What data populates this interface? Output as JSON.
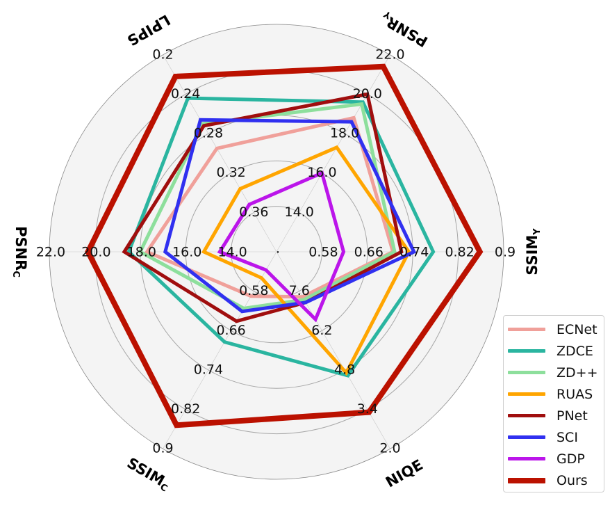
{
  "chart_data": {
    "type": "radar",
    "center_label": ".",
    "axes": [
      {
        "key": "psnry",
        "main": "PSNR",
        "sub": "Y",
        "ticks": [
          "14.0",
          "16.0",
          "18.0",
          "20.0",
          "22.0"
        ],
        "min": 12.0,
        "max": 22.0,
        "invert": false
      },
      {
        "key": "ssimy",
        "main": "SSIM",
        "sub": "Y",
        "ticks": [
          "0.58",
          "0.66",
          "0.74",
          "0.82",
          "0.9"
        ],
        "min": 0.5,
        "max": 0.9,
        "invert": false
      },
      {
        "key": "niqe",
        "main": "NIQE",
        "sub": "",
        "ticks": [
          "7.6",
          "6.2",
          "4.8",
          "3.4",
          "2.0"
        ],
        "min": 9.0,
        "max": 2.0,
        "invert": true
      },
      {
        "key": "ssimc",
        "main": "SSIM",
        "sub": "C",
        "ticks": [
          "0.58",
          "0.66",
          "0.74",
          "0.82",
          "0.9"
        ],
        "min": 0.5,
        "max": 0.9,
        "invert": false
      },
      {
        "key": "psnrc",
        "main": "PSNR",
        "sub": "C",
        "ticks": [
          "14.0",
          "16.0",
          "18.0",
          "20.0",
          "22.0"
        ],
        "min": 12.0,
        "max": 22.0,
        "invert": false
      },
      {
        "key": "lpips",
        "main": "LPIPS",
        "sub": "",
        "ticks": [
          "0.36",
          "0.32",
          "0.28",
          "0.24",
          "0.2"
        ],
        "min": 0.4,
        "max": 0.2,
        "invert": true
      }
    ],
    "series": [
      {
        "name": "ECNet",
        "color": "#f0a09a",
        "width": 5,
        "values": [
          18.8,
          0.705,
          7.4,
          0.59,
          17.7,
          0.295
        ]
      },
      {
        "name": "ZDCE",
        "color": "#2ab5a0",
        "width": 5,
        "values": [
          19.6,
          0.776,
          4.6,
          0.683,
          18.5,
          0.244
        ]
      },
      {
        "name": "ZD++",
        "color": "#8ddf9c",
        "width": 5,
        "values": [
          19.5,
          0.708,
          7.3,
          0.615,
          18.0,
          0.27
        ]
      },
      {
        "name": "RUAS",
        "color": "#ffa500",
        "width": 5,
        "values": [
          17.3,
          0.733,
          4.7,
          0.553,
          15.2,
          0.336
        ]
      },
      {
        "name": "PNet",
        "color": "#a00e0e",
        "width": 5,
        "values": [
          20.0,
          0.72,
          7.2,
          0.641,
          18.7,
          0.272
        ]
      },
      {
        "name": "SCI",
        "color": "#3030f0",
        "width": 5,
        "values": [
          18.6,
          0.742,
          7.2,
          0.621,
          16.9,
          0.266
        ]
      },
      {
        "name": "GDP",
        "color": "#bb15ea",
        "width": 5,
        "values": [
          16.0,
          0.618,
          6.6,
          0.537,
          14.5,
          0.352
        ]
      },
      {
        "name": "Ours",
        "color": "#bb1100",
        "width": 8,
        "values": [
          21.4,
          0.858,
          3.3,
          0.852,
          20.3,
          0.222
        ]
      }
    ],
    "grid": true,
    "legend_position": "lower-right"
  }
}
